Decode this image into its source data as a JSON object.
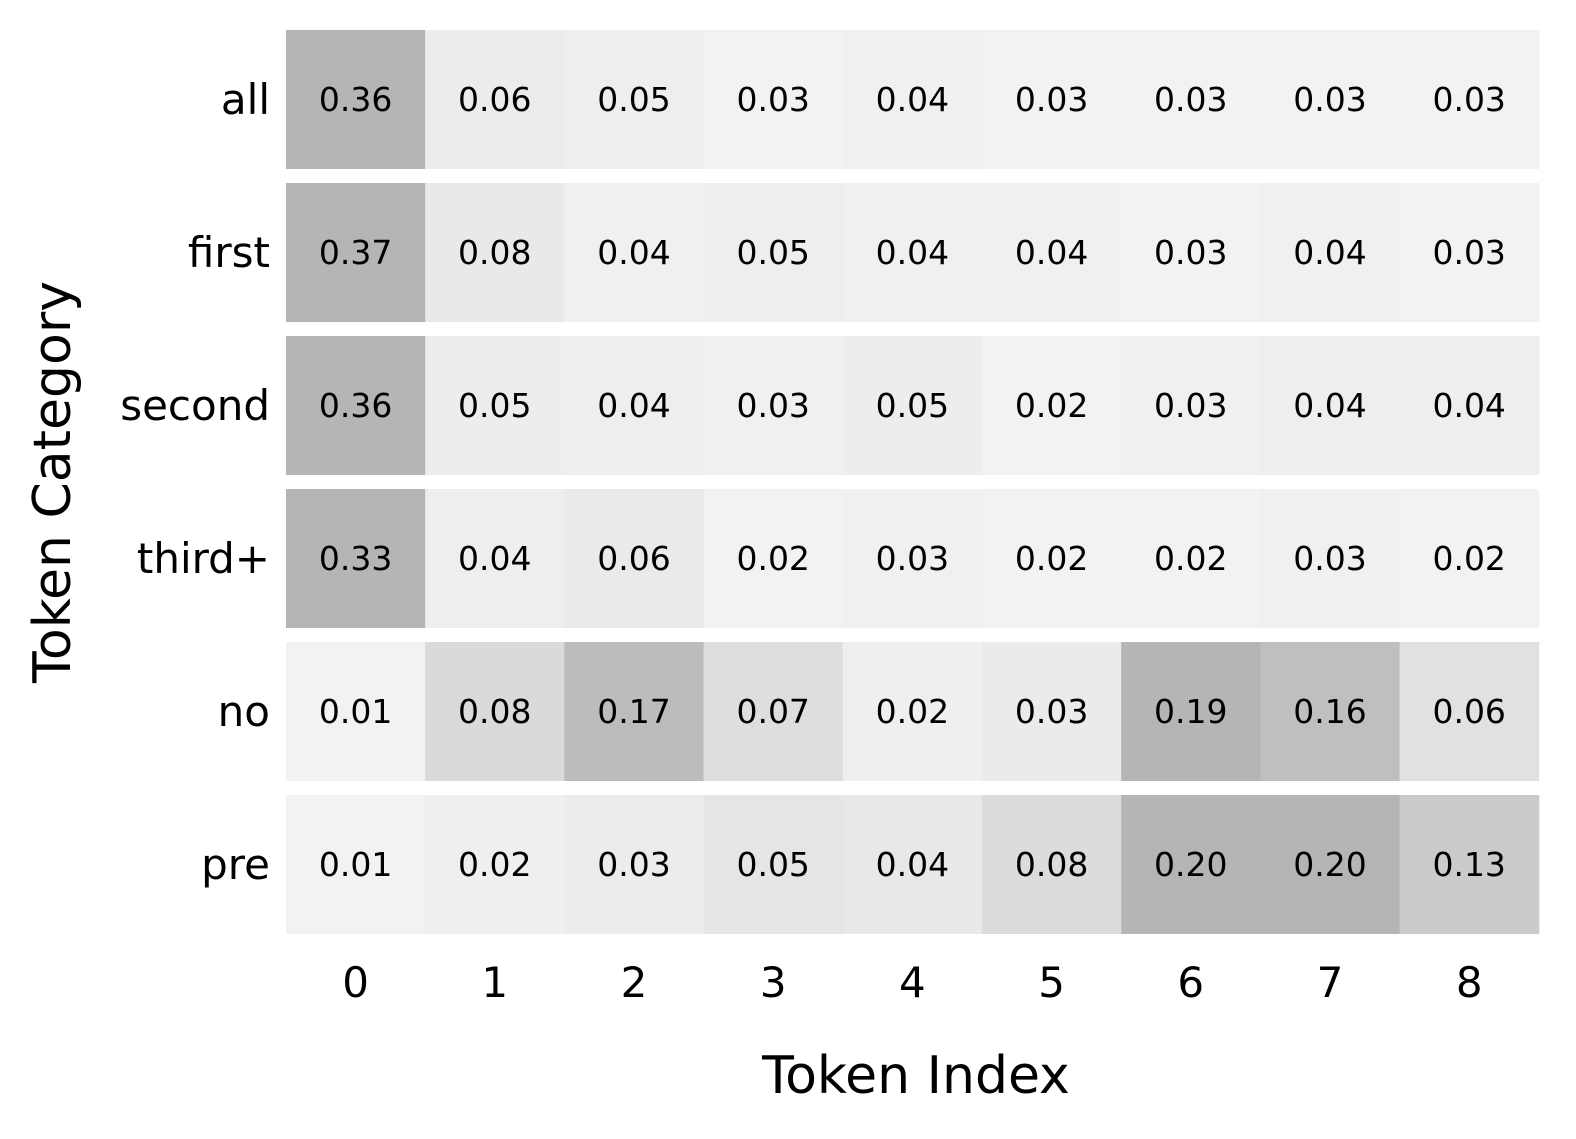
{
  "chart_data": {
    "type": "heatmap",
    "title": "",
    "xlabel": "Token Index",
    "ylabel": "Token Category",
    "x_categories": [
      "0",
      "1",
      "2",
      "3",
      "4",
      "5",
      "6",
      "7",
      "8"
    ],
    "y_categories": [
      "all",
      "first",
      "second",
      "third+",
      "no",
      "pre"
    ],
    "values": [
      [
        0.36,
        0.06,
        0.05,
        0.03,
        0.04,
        0.03,
        0.03,
        0.03,
        0.03
      ],
      [
        0.37,
        0.08,
        0.04,
        0.05,
        0.04,
        0.04,
        0.03,
        0.04,
        0.03
      ],
      [
        0.36,
        0.05,
        0.04,
        0.03,
        0.05,
        0.02,
        0.03,
        0.04,
        0.04
      ],
      [
        0.33,
        0.04,
        0.06,
        0.02,
        0.03,
        0.02,
        0.02,
        0.03,
        0.02
      ],
      [
        0.01,
        0.08,
        0.17,
        0.07,
        0.02,
        0.03,
        0.19,
        0.16,
        0.06
      ],
      [
        0.01,
        0.02,
        0.03,
        0.05,
        0.04,
        0.08,
        0.2,
        0.2,
        0.13
      ]
    ],
    "value_labels": [
      [
        "0.36",
        "0.06",
        "0.05",
        "0.03",
        "0.04",
        "0.03",
        "0.03",
        "0.03",
        "0.03"
      ],
      [
        "0.37",
        "0.08",
        "0.04",
        "0.05",
        "0.04",
        "0.04",
        "0.03",
        "0.04",
        "0.03"
      ],
      [
        "0.36",
        "0.05",
        "0.04",
        "0.03",
        "0.05",
        "0.02",
        "0.03",
        "0.04",
        "0.04"
      ],
      [
        "0.33",
        "0.04",
        "0.06",
        "0.02",
        "0.03",
        "0.02",
        "0.02",
        "0.03",
        "0.02"
      ],
      [
        "0.01",
        "0.08",
        "0.17",
        "0.07",
        "0.02",
        "0.03",
        "0.19",
        "0.16",
        "0.06"
      ],
      [
        "0.01",
        "0.02",
        "0.03",
        "0.05",
        "0.04",
        "0.08",
        "0.20",
        "0.20",
        "0.13"
      ]
    ],
    "colormap": "greys",
    "color_low": "#f2f2f2",
    "color_high": "#b5b5b5",
    "normalization": "per-row",
    "grid": false,
    "legend": "none"
  }
}
